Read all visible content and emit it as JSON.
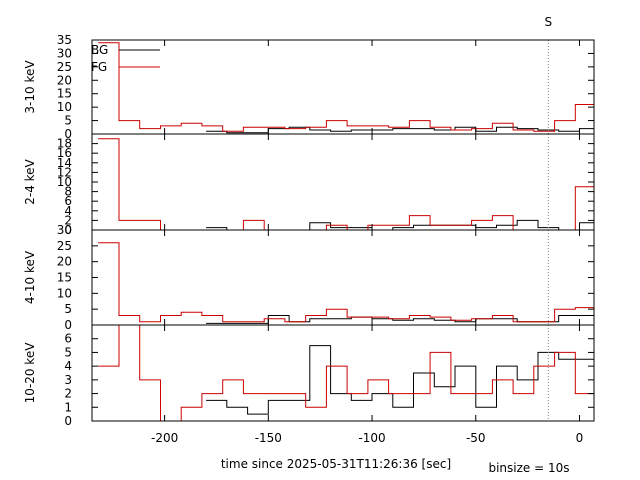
{
  "chart_data": {
    "type": "line",
    "xlabel": "time since 2025-05-31T11:26:36 [sec]",
    "note": "binsize = 10s",
    "xlim": [
      -235,
      7
    ],
    "xticks": [
      -200,
      -150,
      -100,
      -50,
      0
    ],
    "marker": {
      "label": "S",
      "x": -15
    },
    "legend": {
      "position": "top-left",
      "entries": [
        {
          "name": "BG",
          "color": "#000000"
        },
        {
          "name": "FG",
          "color": "#cc0000"
        }
      ]
    },
    "panels": [
      {
        "ylabel": "3-10 keV",
        "ylim": [
          0,
          35
        ],
        "yticks": [
          0,
          5,
          10,
          15,
          20,
          25,
          30,
          35
        ],
        "series": [
          {
            "name": "BG",
            "color": "#000000",
            "x": [
              -180,
              -170,
              -160,
              -150,
              -140,
              -130,
              -120,
              -110,
              -100,
              -90,
              -80,
              -70,
              -60,
              -50,
              -40,
              -30,
              -20,
              -10,
              0
            ],
            "y": [
              1,
              0.5,
              0.5,
              2,
              2.5,
              1.5,
              1,
              1.5,
              1.5,
              2,
              2,
              1.5,
              2.5,
              1,
              2.5,
              2,
              1.5,
              1,
              2
            ]
          },
          {
            "name": "FG",
            "color": "#cc0000",
            "x": [
              -232,
              -222,
              -212,
              -202,
              -192,
              -182,
              -172,
              -162,
              -152,
              -142,
              -132,
              -122,
              -112,
              -102,
              -92,
              -82,
              -72,
              -62,
              -52,
              -42,
              -32,
              -22,
              -12,
              -2
            ],
            "y": [
              34,
              5,
              2,
              3,
              4,
              3,
              1,
              2.5,
              2.5,
              2,
              2.5,
              5,
              3,
              3,
              2.5,
              5,
              2.5,
              1.5,
              2,
              4,
              1.5,
              1,
              5,
              11
            ]
          }
        ]
      },
      {
        "ylabel": "2-4 keV",
        "ylim": [
          0,
          20
        ],
        "yticks": [
          0,
          2,
          4,
          6,
          8,
          10,
          12,
          14,
          16,
          18
        ],
        "series": [
          {
            "name": "BG",
            "color": "#000000",
            "x": [
              -180,
              -170,
              -160,
              -150,
              -140,
              -130,
              -120,
              -110,
              -100,
              -90,
              -80,
              -70,
              -60,
              -50,
              -40,
              -30,
              -20,
              -10,
              0
            ],
            "y": [
              0.5,
              0,
              0,
              0,
              0,
              1.5,
              0.5,
              0.5,
              0,
              0.5,
              1,
              1,
              1,
              0.5,
              1,
              2,
              0.5,
              0,
              1.5
            ]
          },
          {
            "name": "FG",
            "color": "#cc0000",
            "x": [
              -232,
              -222,
              -212,
              -202,
              -192,
              -182,
              -172,
              -162,
              -152,
              -142,
              -132,
              -122,
              -112,
              -102,
              -92,
              -82,
              -72,
              -62,
              -52,
              -42,
              -32,
              -22,
              -12,
              -2
            ],
            "y": [
              19,
              2,
              2,
              0,
              0,
              0,
              0,
              2,
              0,
              0,
              0,
              1,
              0,
              1,
              1,
              3,
              1,
              1,
              2,
              3,
              0,
              0,
              0,
              9
            ]
          }
        ]
      },
      {
        "ylabel": "4-10 keV",
        "ylim": [
          0,
          30
        ],
        "yticks": [
          0,
          5,
          10,
          15,
          20,
          25,
          30
        ],
        "series": [
          {
            "name": "BG",
            "color": "#000000",
            "x": [
              -180,
              -170,
              -160,
              -150,
              -140,
              -130,
              -120,
              -110,
              -100,
              -90,
              -80,
              -70,
              -60,
              -50,
              -40,
              -30,
              -20,
              -10,
              0
            ],
            "y": [
              0.5,
              0.5,
              0.5,
              3,
              1,
              2,
              2,
              2.5,
              2,
              1.5,
              2,
              1.5,
              1,
              2,
              2,
              1,
              1,
              3,
              3
            ]
          },
          {
            "name": "FG",
            "color": "#cc0000",
            "x": [
              -232,
              -222,
              -212,
              -202,
              -192,
              -182,
              -172,
              -162,
              -152,
              -142,
              -132,
              -122,
              -112,
              -102,
              -92,
              -82,
              -72,
              -62,
              -52,
              -42,
              -32,
              -22,
              -12,
              -2
            ],
            "y": [
              26,
              3,
              1,
              3,
              4,
              3,
              1,
              1,
              2,
              1,
              3,
              5,
              2.5,
              2.5,
              2,
              3,
              2.5,
              1.5,
              2,
              3,
              1,
              1,
              5,
              5.5
            ]
          }
        ]
      },
      {
        "ylabel": "10-20 keV",
        "ylim": [
          0,
          7
        ],
        "yticks": [
          0,
          1,
          2,
          3,
          4,
          5,
          6
        ],
        "series": [
          {
            "name": "BG",
            "color": "#000000",
            "x": [
              -180,
              -170,
              -160,
              -150,
              -140,
              -130,
              -120,
              -110,
              -100,
              -90,
              -80,
              -70,
              -60,
              -50,
              -40,
              -30,
              -20,
              -10,
              0
            ],
            "y": [
              1.5,
              1,
              0.5,
              1.5,
              1.5,
              5.5,
              2,
              1.5,
              2,
              1,
              3.5,
              2.5,
              4,
              1,
              4,
              3,
              5,
              4.5,
              4.5
            ]
          },
          {
            "name": "FG",
            "color": "#cc0000",
            "x": [
              -232,
              -222,
              -212,
              -202,
              -192,
              -182,
              -172,
              -162,
              -152,
              -142,
              -132,
              -122,
              -112,
              -102,
              -92,
              -82,
              -72,
              -62,
              -52,
              -42,
              -32,
              -22,
              -12,
              -2
            ],
            "y": [
              4,
              7,
              3,
              0,
              1,
              2,
              3,
              2,
              2,
              2,
              1,
              4,
              2,
              3,
              2,
              2,
              5,
              2,
              2,
              3,
              2,
              4,
              5,
              2
            ]
          }
        ]
      }
    ]
  }
}
